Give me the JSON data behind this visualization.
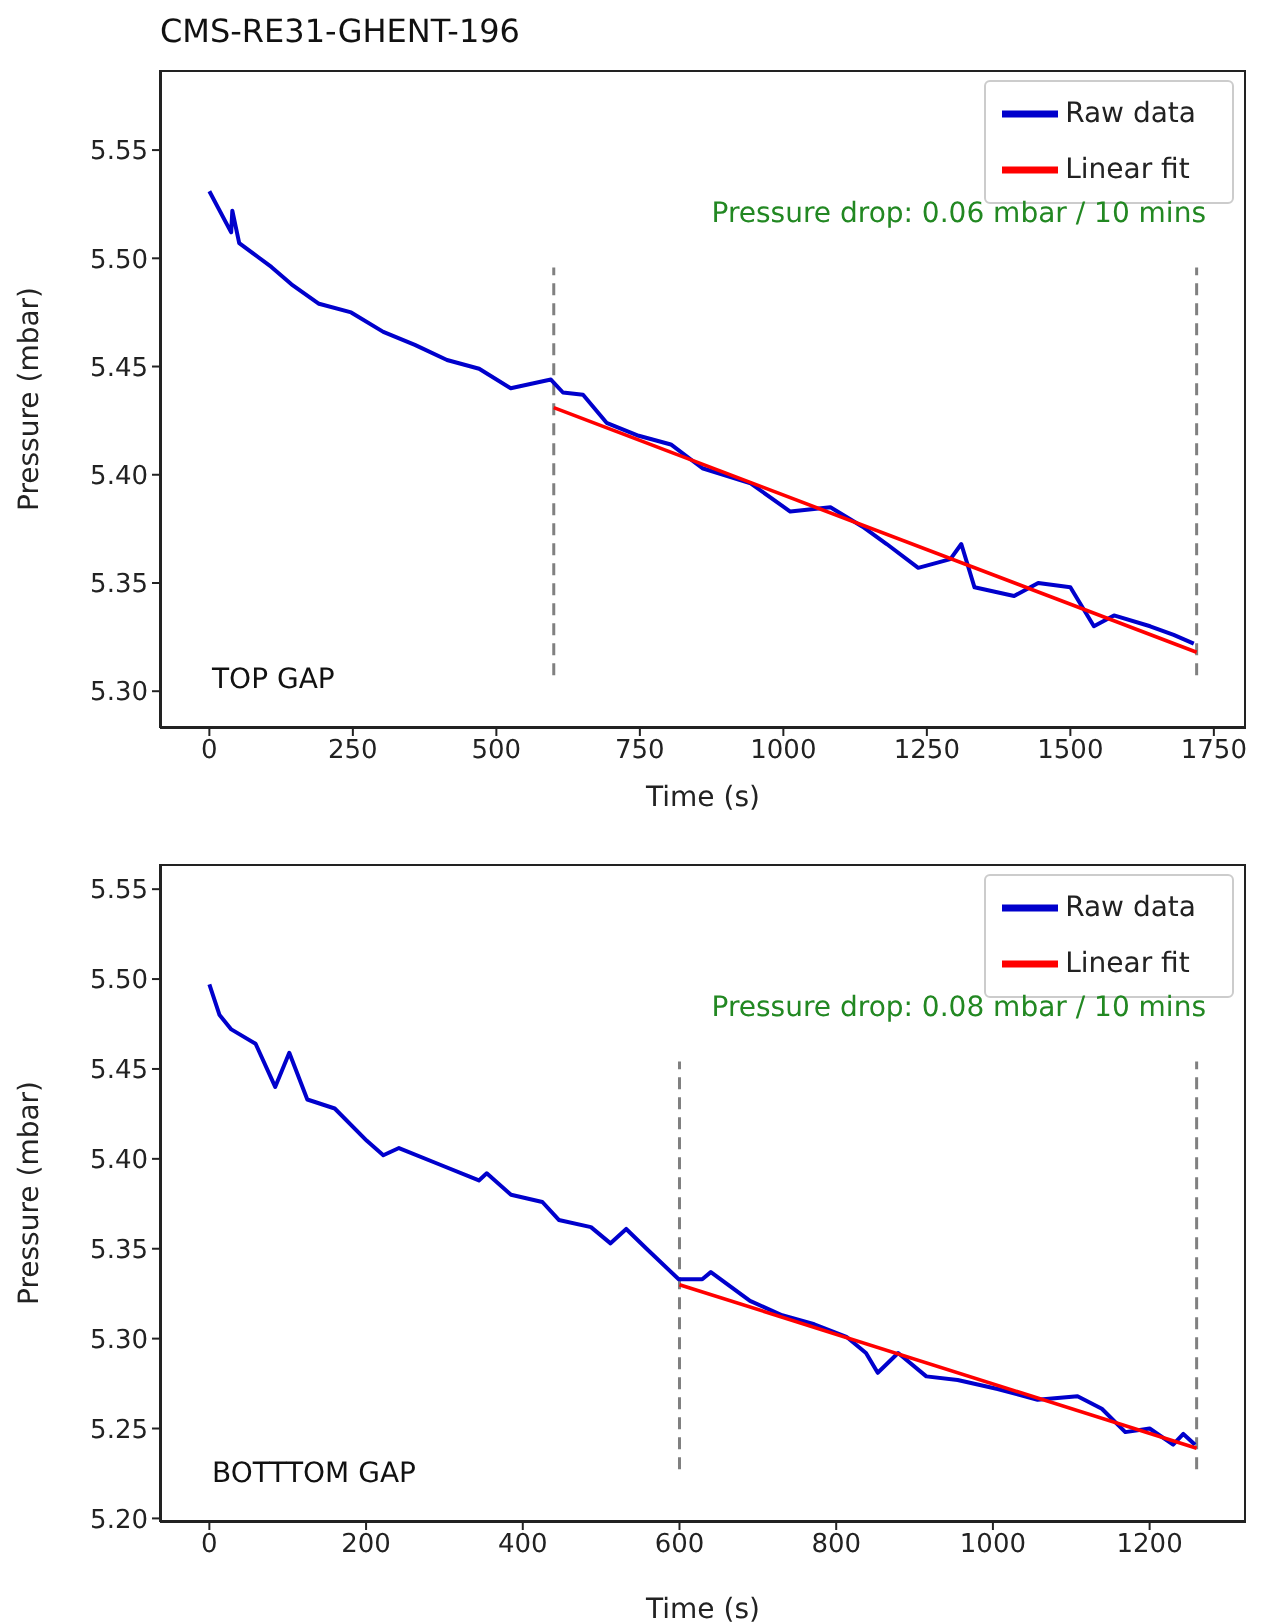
{
  "chart_data": [
    {
      "type": "line",
      "title": "CMS-RE31-GHENT-196",
      "xlabel": "Time (s)",
      "ylabel": "Pressure (mbar)",
      "xlim": [
        -86,
        1806
      ],
      "ylim": [
        5.283,
        5.587
      ],
      "xticks": [
        0,
        250,
        500,
        750,
        1000,
        1250,
        1500,
        1750
      ],
      "yticks": [
        {
          "value": 5.3,
          "label": "5.30"
        },
        5.35,
        {
          "value": 5.4,
          "label": "5.40"
        },
        5.45,
        {
          "value": 5.5,
          "label": "5.50"
        },
        5.55
      ],
      "legend": "top right",
      "marker": "none",
      "line_style": "solid",
      "annotations": [
        "Pressure drop: 0.06 mbar / 10 mins",
        "TOP GAP"
      ],
      "ref_lines": [
        {
          "axis": "x",
          "value": 600,
          "color": "#808080",
          "line_style": "dashed"
        },
        {
          "axis": "x",
          "value": 1720,
          "color": "#808080",
          "line_style": "dashed"
        }
      ],
      "series": [
        {
          "name": "Raw data",
          "color": "#0000cc",
          "x": [
            0,
            38,
            40,
            52,
            108,
            143,
            191,
            247,
            303,
            358,
            414,
            470,
            525,
            595,
            616,
            651,
            692,
            748,
            804,
            859,
            943,
            1012,
            1082,
            1138,
            1180,
            1235,
            1291,
            1310,
            1333,
            1402,
            1444,
            1500,
            1541,
            1576,
            1639,
            1680,
            1715
          ],
          "values": [
            5.531,
            5.512,
            5.522,
            5.507,
            5.496,
            5.488,
            5.479,
            5.475,
            5.466,
            5.46,
            5.453,
            5.449,
            5.44,
            5.444,
            5.438,
            5.437,
            5.424,
            5.418,
            5.414,
            5.403,
            5.396,
            5.383,
            5.385,
            5.376,
            5.368,
            5.357,
            5.361,
            5.368,
            5.348,
            5.344,
            5.35,
            5.348,
            5.33,
            5.335,
            5.33,
            5.326,
            5.322
          ]
        },
        {
          "name": "Linear fit",
          "color": "#ff0000",
          "x": [
            600,
            1720
          ],
          "values": [
            5.431,
            5.318
          ]
        }
      ]
    },
    {
      "type": "line",
      "xlabel": "Time (s)",
      "ylabel": "Pressure (mbar)",
      "xlim": [
        -63,
        1323
      ],
      "ylim": [
        5.198,
        5.564
      ],
      "xticks": [
        0,
        200,
        400,
        600,
        800,
        1000,
        1200
      ],
      "yticks": [
        {
          "value": 5.2,
          "label": "5.20"
        },
        5.25,
        {
          "value": 5.3,
          "label": "5.30"
        },
        5.35,
        {
          "value": 5.4,
          "label": "5.40"
        },
        5.45,
        {
          "value": 5.5,
          "label": "5.50"
        },
        5.55
      ],
      "legend": "top right",
      "marker": "none",
      "line_style": "solid",
      "annotations": [
        "Pressure drop: 0.08 mbar / 10 mins",
        "BOTTTOM GAP"
      ],
      "ref_lines": [
        {
          "axis": "x",
          "value": 600,
          "color": "#808080",
          "line_style": "dashed"
        },
        {
          "axis": "x",
          "value": 1260,
          "color": "#808080",
          "line_style": "dashed"
        }
      ],
      "series": [
        {
          "name": "Raw data",
          "color": "#0000cc",
          "x": [
            0,
            13,
            28,
            59,
            84,
            102,
            125,
            160,
            201,
            222,
            242,
            293,
            344,
            354,
            385,
            425,
            446,
            487,
            512,
            532,
            558,
            599,
            629,
            640,
            690,
            731,
            772,
            813,
            838,
            853,
            879,
            915,
            955,
            1006,
            1057,
            1108,
            1139,
            1169,
            1200,
            1230,
            1243,
            1258
          ],
          "values": [
            5.497,
            5.48,
            5.472,
            5.464,
            5.44,
            5.459,
            5.433,
            5.428,
            5.41,
            5.402,
            5.406,
            5.397,
            5.388,
            5.392,
            5.38,
            5.376,
            5.366,
            5.362,
            5.353,
            5.361,
            5.35,
            5.333,
            5.333,
            5.337,
            5.321,
            5.313,
            5.308,
            5.301,
            5.292,
            5.281,
            5.292,
            5.279,
            5.277,
            5.272,
            5.266,
            5.268,
            5.261,
            5.248,
            5.25,
            5.241,
            5.247,
            5.241
          ]
        },
        {
          "name": "Linear fit",
          "color": "#ff0000",
          "x": [
            600,
            1260
          ],
          "values": [
            5.33,
            5.239
          ]
        }
      ]
    }
  ]
}
